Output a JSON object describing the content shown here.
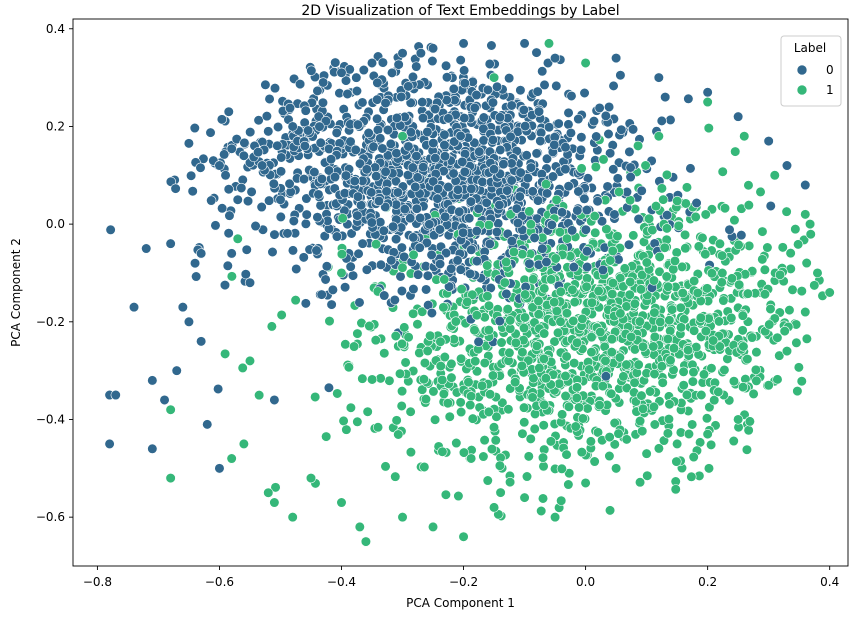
{
  "chart_data": {
    "type": "scatter",
    "title": "2D Visualization of Text Embeddings by Label",
    "xlabel": "PCA Component 1",
    "ylabel": "PCA Component 2",
    "xlim": [
      -0.84,
      0.43
    ],
    "ylim": [
      -0.7,
      0.42
    ],
    "x_ticks": [
      -0.8,
      -0.6,
      -0.4,
      -0.2,
      0.0,
      0.2,
      0.4
    ],
    "x_tick_labels": [
      "−0.8",
      "−0.6",
      "−0.4",
      "−0.2",
      "0.0",
      "0.2",
      "0.4"
    ],
    "y_ticks": [
      -0.6,
      -0.4,
      -0.2,
      0.0,
      0.2,
      0.4
    ],
    "y_tick_labels": [
      "−0.6",
      "−0.4",
      "−0.2",
      "0.0",
      "0.2",
      "0.4"
    ],
    "grid": false,
    "legend": {
      "title": "Label",
      "position": "top-right",
      "entries": [
        {
          "label": "0",
          "color": "#31688e"
        },
        {
          "label": "1",
          "color": "#35b779"
        }
      ]
    },
    "series": [
      {
        "name": "0",
        "color": "#31688e",
        "approx_point_count": 1500,
        "sample_points": [
          [
            -0.78,
            -0.35
          ],
          [
            -0.77,
            -0.35
          ],
          [
            -0.78,
            -0.45
          ],
          [
            -0.74,
            -0.17
          ],
          [
            -0.72,
            -0.05
          ],
          [
            -0.71,
            -0.46
          ],
          [
            -0.71,
            -0.32
          ],
          [
            -0.69,
            -0.36
          ],
          [
            -0.68,
            -0.04
          ],
          [
            -0.67,
            -0.3
          ],
          [
            -0.66,
            -0.17
          ],
          [
            -0.65,
            -0.2
          ],
          [
            -0.64,
            -0.08
          ],
          [
            -0.63,
            -0.06
          ],
          [
            -0.63,
            -0.24
          ],
          [
            -0.62,
            -0.41
          ],
          [
            -0.61,
            0.13
          ],
          [
            -0.6,
            0.12
          ],
          [
            -0.6,
            -0.5
          ],
          [
            -0.59,
            0.1
          ],
          [
            -0.58,
            -0.06
          ],
          [
            -0.57,
            0.05
          ],
          [
            -0.56,
            0.14
          ],
          [
            -0.55,
            -0.12
          ],
          [
            -0.53,
            0.12
          ],
          [
            -0.52,
            0.19
          ],
          [
            -0.51,
            -0.36
          ],
          [
            -0.5,
            0.05
          ],
          [
            -0.48,
            0.2
          ],
          [
            -0.46,
            0.16
          ],
          [
            -0.43,
            0.29
          ],
          [
            -0.4,
            0.31
          ],
          [
            -0.35,
            0.33
          ],
          [
            -0.3,
            0.35
          ],
          [
            -0.25,
            0.36
          ],
          [
            -0.2,
            0.37
          ],
          [
            -0.1,
            0.37
          ],
          [
            -0.05,
            0.34
          ],
          [
            0.05,
            0.34
          ],
          [
            0.12,
            0.3
          ],
          [
            0.2,
            0.27
          ],
          [
            0.25,
            0.22
          ],
          [
            0.3,
            0.17
          ],
          [
            0.33,
            0.12
          ],
          [
            0.36,
            0.08
          ]
        ],
        "distribution": {
          "center": [
            -0.24,
            0.1
          ],
          "sd": [
            0.17,
            0.12
          ],
          "rotation_deg": -12
        }
      },
      {
        "name": "1",
        "color": "#35b779",
        "approx_point_count": 1500,
        "sample_points": [
          [
            -0.68,
            -0.52
          ],
          [
            -0.68,
            -0.38
          ],
          [
            -0.58,
            -0.48
          ],
          [
            -0.57,
            -0.03
          ],
          [
            -0.56,
            -0.45
          ],
          [
            -0.55,
            -0.28
          ],
          [
            -0.52,
            -0.55
          ],
          [
            -0.51,
            -0.57
          ],
          [
            -0.48,
            -0.6
          ],
          [
            -0.45,
            -0.52
          ],
          [
            -0.4,
            -0.57
          ],
          [
            -0.37,
            -0.62
          ],
          [
            -0.36,
            -0.65
          ],
          [
            -0.3,
            -0.6
          ],
          [
            -0.25,
            -0.62
          ],
          [
            -0.2,
            -0.64
          ],
          [
            -0.15,
            -0.58
          ],
          [
            -0.1,
            -0.56
          ],
          [
            -0.05,
            -0.6
          ],
          [
            0.0,
            -0.53
          ],
          [
            0.05,
            -0.5
          ],
          [
            0.1,
            -0.47
          ],
          [
            0.15,
            -0.45
          ],
          [
            0.2,
            -0.43
          ],
          [
            0.25,
            -0.4
          ],
          [
            0.3,
            -0.33
          ],
          [
            0.33,
            -0.26
          ],
          [
            0.36,
            -0.18
          ],
          [
            0.38,
            -0.1
          ],
          [
            0.4,
            -0.14
          ],
          [
            0.36,
            0.02
          ],
          [
            0.31,
            0.1
          ],
          [
            0.26,
            0.18
          ],
          [
            0.2,
            0.25
          ],
          [
            0.12,
            0.18
          ],
          [
            0.0,
            0.33
          ],
          [
            -0.06,
            0.37
          ],
          [
            -0.15,
            0.3
          ],
          [
            -0.3,
            0.18
          ],
          [
            -0.4,
            -0.1
          ]
        ],
        "distribution": {
          "center": [
            0.02,
            -0.22
          ],
          "sd": [
            0.19,
            0.13
          ],
          "rotation_deg": 10
        }
      }
    ]
  }
}
